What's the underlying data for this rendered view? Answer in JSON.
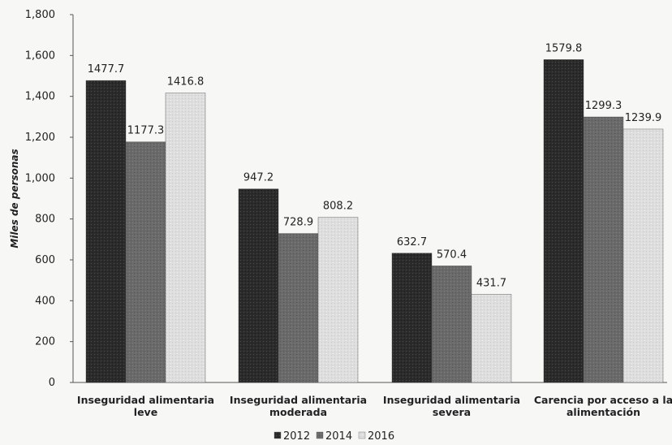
{
  "chart_data": {
    "type": "bar",
    "title": "",
    "xlabel": "",
    "ylabel": "Miles de personas",
    "ylim": [
      0,
      1800
    ],
    "yticks": [
      "0",
      "200",
      "400",
      "600",
      "800",
      "1,000",
      "1,200",
      "1,400",
      "1,600",
      "1,800"
    ],
    "categories": [
      [
        "Inseguridad alimentaria",
        "leve"
      ],
      [
        "Inseguridad alimentaria",
        "moderada"
      ],
      [
        "Inseguridad alimentaria",
        "severa"
      ],
      [
        "Carencia por acceso a la",
        "alimentación"
      ]
    ],
    "series": [
      {
        "name": "2012",
        "values": [
          1477.7,
          947.2,
          632.7,
          1579.8
        ],
        "labels": [
          "1477.7",
          "947.2",
          "632.7",
          "1579.8"
        ],
        "color": "#2b2b2b"
      },
      {
        "name": "2014",
        "values": [
          1177.3,
          728.9,
          570.4,
          1299.3
        ],
        "labels": [
          "1177.3",
          "728.9",
          "570.4",
          "1299.3"
        ],
        "color": "#6a6a6a"
      },
      {
        "name": "2016",
        "values": [
          1416.8,
          808.2,
          431.7,
          1239.9
        ],
        "labels": [
          "1416.8",
          "808.2",
          "431.7",
          "1239.9"
        ],
        "color": "#dcdcdc"
      }
    ],
    "legend": {
      "position": "bottom"
    },
    "grid": false
  }
}
